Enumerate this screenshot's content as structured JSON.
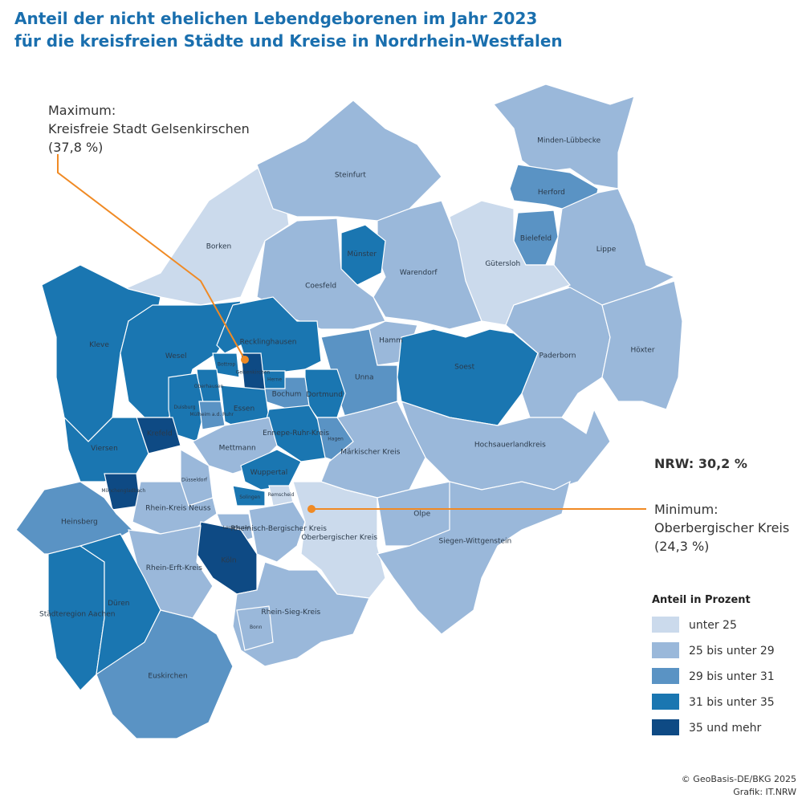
{
  "title": [
    "Anteil der nicht ehelichen Lebendgeborenen im Jahr 2023",
    "für die kreisfreien Städte und Kreise in Nordrhein-Westfalen"
  ],
  "maximum": {
    "label": "Maximum:",
    "name": "Kreisfreie Stadt Gelsenkirschen",
    "value_label": "(37,8 %)"
  },
  "minimum": {
    "label": "Minimum:",
    "name": "Oberbergischer Kreis",
    "value_label": "(24,3 %)"
  },
  "nrw": "NRW: 30,2 %",
  "legend": {
    "title": "Anteil in Prozent",
    "classes": [
      {
        "label": "unter 25",
        "color": "#cbdaec"
      },
      {
        "label": "25 bis unter 29",
        "color": "#9ab8da"
      },
      {
        "label": "29 bis unter 31",
        "color": "#5a93c4"
      },
      {
        "label": "31 bis unter 35",
        "color": "#1a76b1"
      },
      {
        "label": "35 und mehr",
        "color": "#0e4a84"
      }
    ]
  },
  "regions": [
    {
      "name": "Borken",
      "class": 0
    },
    {
      "name": "Steinfurt",
      "class": 1
    },
    {
      "name": "Minden-Lübbecke",
      "class": 1
    },
    {
      "name": "Herford",
      "class": 2
    },
    {
      "name": "Bielefeld",
      "class": 2
    },
    {
      "name": "Lippe",
      "class": 1
    },
    {
      "name": "Gütersloh",
      "class": 0
    },
    {
      "name": "Warendorf",
      "class": 1
    },
    {
      "name": "Münster",
      "class": 3
    },
    {
      "name": "Coesfeld",
      "class": 1
    },
    {
      "name": "Kleve",
      "class": 3
    },
    {
      "name": "Wesel",
      "class": 3
    },
    {
      "name": "Recklinghausen",
      "class": 3
    },
    {
      "name": "Hamm",
      "class": 1
    },
    {
      "name": "Unna",
      "class": 2
    },
    {
      "name": "Soest",
      "class": 3
    },
    {
      "name": "Paderborn",
      "class": 1
    },
    {
      "name": "Höxter",
      "class": 1
    },
    {
      "name": "Hochsauerlandkreis",
      "class": 1
    },
    {
      "name": "Dortmund",
      "class": 3
    },
    {
      "name": "Bochum",
      "class": 2
    },
    {
      "name": "Herne",
      "class": 3
    },
    {
      "name": "Gelsenkirchen",
      "class": 4
    },
    {
      "name": "Bottrop",
      "class": 3
    },
    {
      "name": "Oberhausen",
      "class": 3
    },
    {
      "name": "Duisburg",
      "class": 3
    },
    {
      "name": "Mülheim a.d. Ruhr",
      "class": 2
    },
    {
      "name": "Essen",
      "class": 3
    },
    {
      "name": "Krefeld",
      "class": 4
    },
    {
      "name": "Viersen",
      "class": 3
    },
    {
      "name": "Mönchengladbach",
      "class": 4
    },
    {
      "name": "Ennepe-Ruhr-Kreis",
      "class": 3
    },
    {
      "name": "Hagen",
      "class": 2
    },
    {
      "name": "Märkischer Kreis",
      "class": 1
    },
    {
      "name": "Mettmann",
      "class": 1
    },
    {
      "name": "Düsseldorf",
      "class": 1
    },
    {
      "name": "Wuppertal",
      "class": 3
    },
    {
      "name": "Remscheid",
      "class": 0
    },
    {
      "name": "Solingen",
      "class": 3
    },
    {
      "name": "Rhein-Kreis Neuss",
      "class": 1
    },
    {
      "name": "Heinsberg",
      "class": 2
    },
    {
      "name": "Leverkusen",
      "class": 1
    },
    {
      "name": "Rheinisch-Bergischer Kreis",
      "class": 1
    },
    {
      "name": "Oberbergischer Kreis",
      "class": 0
    },
    {
      "name": "Olpe",
      "class": 1
    },
    {
      "name": "Siegen-Wittgenstein",
      "class": 1
    },
    {
      "name": "Köln",
      "class": 4
    },
    {
      "name": "Rhein-Erft-Kreis",
      "class": 1
    },
    {
      "name": "Städteregion Aachen",
      "class": 3
    },
    {
      "name": "Düren",
      "class": 3
    },
    {
      "name": "Rhein-Sieg-Kreis",
      "class": 1
    },
    {
      "name": "Bonn",
      "class": 1
    },
    {
      "name": "Euskirchen",
      "class": 2
    }
  ],
  "credits": [
    "© GeoBasis-DE/BKG 2025",
    "Grafik: IT.NRW"
  ]
}
